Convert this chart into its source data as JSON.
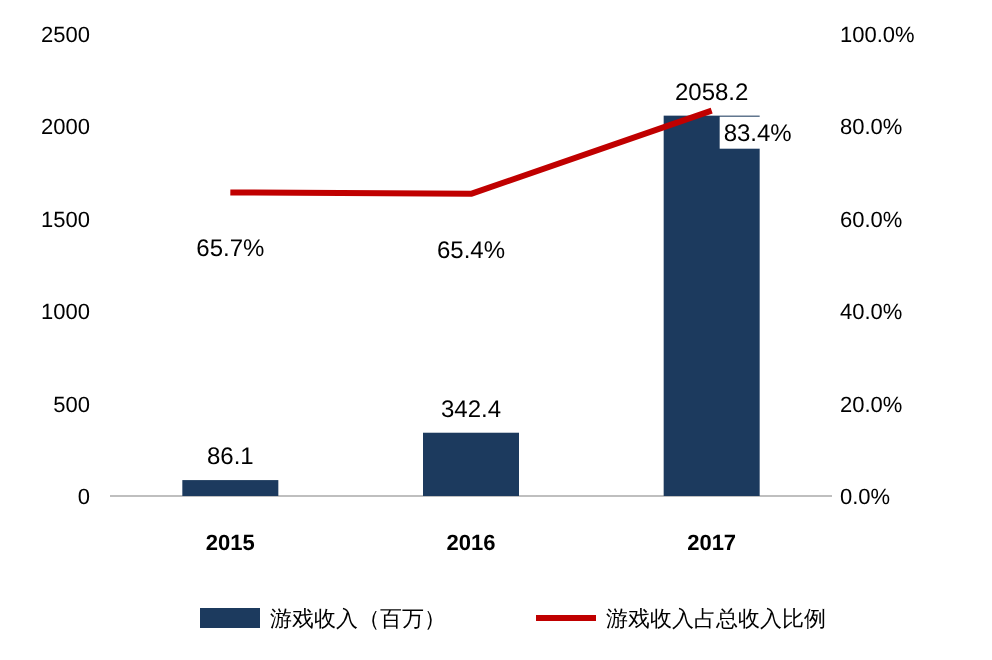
{
  "chart_data": {
    "type": "bar",
    "categories": [
      "2015",
      "2016",
      "2017"
    ],
    "series": [
      {
        "name": "游戏收入（百万）",
        "color": "#1c3a5e",
        "values": [
          86.1,
          342.4,
          2058.2
        ]
      },
      {
        "name": "游戏收入占总收入比例",
        "type": "line",
        "axis": "y2",
        "color": "#c00000",
        "values": [
          65.7,
          65.4,
          83.4
        ],
        "value_labels": [
          "65.7%",
          "65.4%",
          "83.4%"
        ]
      }
    ],
    "ylim": [
      0,
      2500
    ],
    "yticks": [
      0,
      500,
      1000,
      1500,
      2000,
      2500
    ],
    "y2lim": [
      0,
      100
    ],
    "y2ticks": [
      {
        "value": 0,
        "label": "0.0%"
      },
      {
        "value": 20,
        "label": "20.0%"
      },
      {
        "value": 40,
        "label": "40.0%"
      },
      {
        "value": 60,
        "label": "60.0%"
      },
      {
        "value": 80,
        "label": "80.0%"
      },
      {
        "value": 100,
        "label": "100.0%"
      }
    ],
    "data_labels": true,
    "grid": false,
    "legend": "bottom",
    "marker": "none",
    "line_style": "solid"
  }
}
